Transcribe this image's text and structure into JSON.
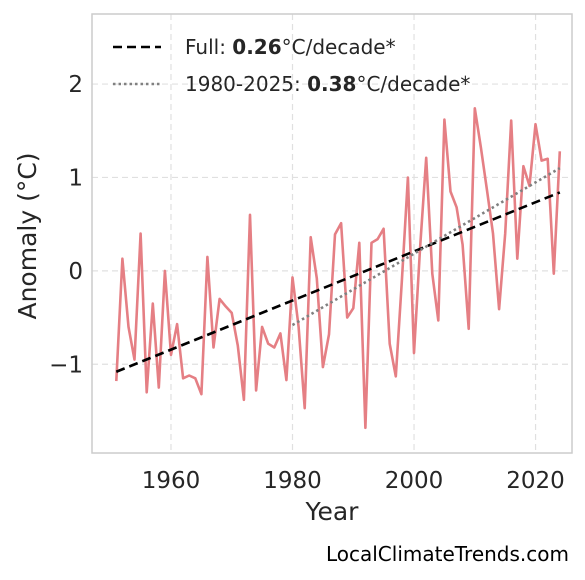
{
  "chart_data": {
    "type": "line",
    "xlabel": "Year",
    "ylabel": "Anomaly (°C)",
    "xlim": [
      1947,
      2026
    ],
    "ylim": [
      -1.95,
      2.75
    ],
    "grid": true,
    "x_ticks": [
      1960,
      1980,
      2000,
      2020
    ],
    "x_tick_labels": [
      "1960",
      "1980",
      "2000",
      "2020"
    ],
    "y_ticks": [
      -1,
      0,
      1,
      2
    ],
    "y_tick_labels": [
      "−1",
      "0",
      "1",
      "2"
    ],
    "legend_position": "top-left",
    "series": [
      {
        "x": [
          1951,
          1952,
          1953,
          1954,
          1955,
          1956,
          1957,
          1958,
          1959,
          1960,
          1961,
          1962,
          1963,
          1964,
          1965,
          1966,
          1967,
          1968,
          1969,
          1970,
          1971,
          1972,
          1973,
          1974,
          1975,
          1976,
          1977,
          1978,
          1979,
          1980,
          1981,
          1982,
          1983,
          1984,
          1985,
          1986,
          1987,
          1988,
          1989,
          1990,
          1991,
          1992,
          1993,
          1994,
          1995,
          1996,
          1997,
          1998,
          1999,
          2000,
          2001,
          2002,
          2003,
          2004,
          2005,
          2006,
          2007,
          2008,
          2009,
          2010,
          2011,
          2012,
          2013,
          2014,
          2015,
          2016,
          2017,
          2018,
          2019,
          2020,
          2021,
          2022,
          2023,
          2024
        ],
        "values": [
          -1.18,
          0.13,
          -0.6,
          -0.95,
          0.4,
          -1.3,
          -0.35,
          -1.25,
          0.0,
          -0.9,
          -0.57,
          -1.15,
          -1.12,
          -1.15,
          -1.32,
          0.15,
          -0.82,
          -0.3,
          -0.38,
          -0.45,
          -0.8,
          -1.38,
          0.6,
          -1.28,
          -0.6,
          -0.78,
          -0.82,
          -0.67,
          -1.17,
          -0.07,
          -0.6,
          -1.47,
          0.36,
          -0.08,
          -1.03,
          -0.68,
          0.39,
          0.51,
          -0.5,
          -0.4,
          0.3,
          -1.68,
          0.3,
          0.34,
          0.45,
          -0.78,
          -1.13,
          -0.1,
          1.0,
          -0.88,
          0.25,
          1.21,
          -0.03,
          -0.53,
          1.62,
          0.85,
          0.68,
          0.28,
          -0.62,
          1.74,
          1.32,
          0.87,
          0.4,
          -0.41,
          0.4,
          1.61,
          0.13,
          1.12,
          0.91,
          1.57,
          1.18,
          1.2,
          -0.03,
          1.28
        ],
        "color": "#e57f84"
      }
    ],
    "trends": [
      {
        "label_prefix": "Full: ",
        "label_value": "0.26",
        "label_suffix": "°C/decade*",
        "x": [
          1951,
          2024
        ],
        "values": [
          -1.08,
          0.84
        ],
        "style": "dashed",
        "color": "#000000"
      },
      {
        "label_prefix": "1980-2025: ",
        "label_value": "0.38",
        "label_suffix": "°C/decade*",
        "x": [
          1980,
          2024
        ],
        "values": [
          -0.58,
          1.1
        ],
        "style": "dotted",
        "color": "#808080"
      }
    ]
  },
  "watermark": "LocalClimateTrends.com"
}
